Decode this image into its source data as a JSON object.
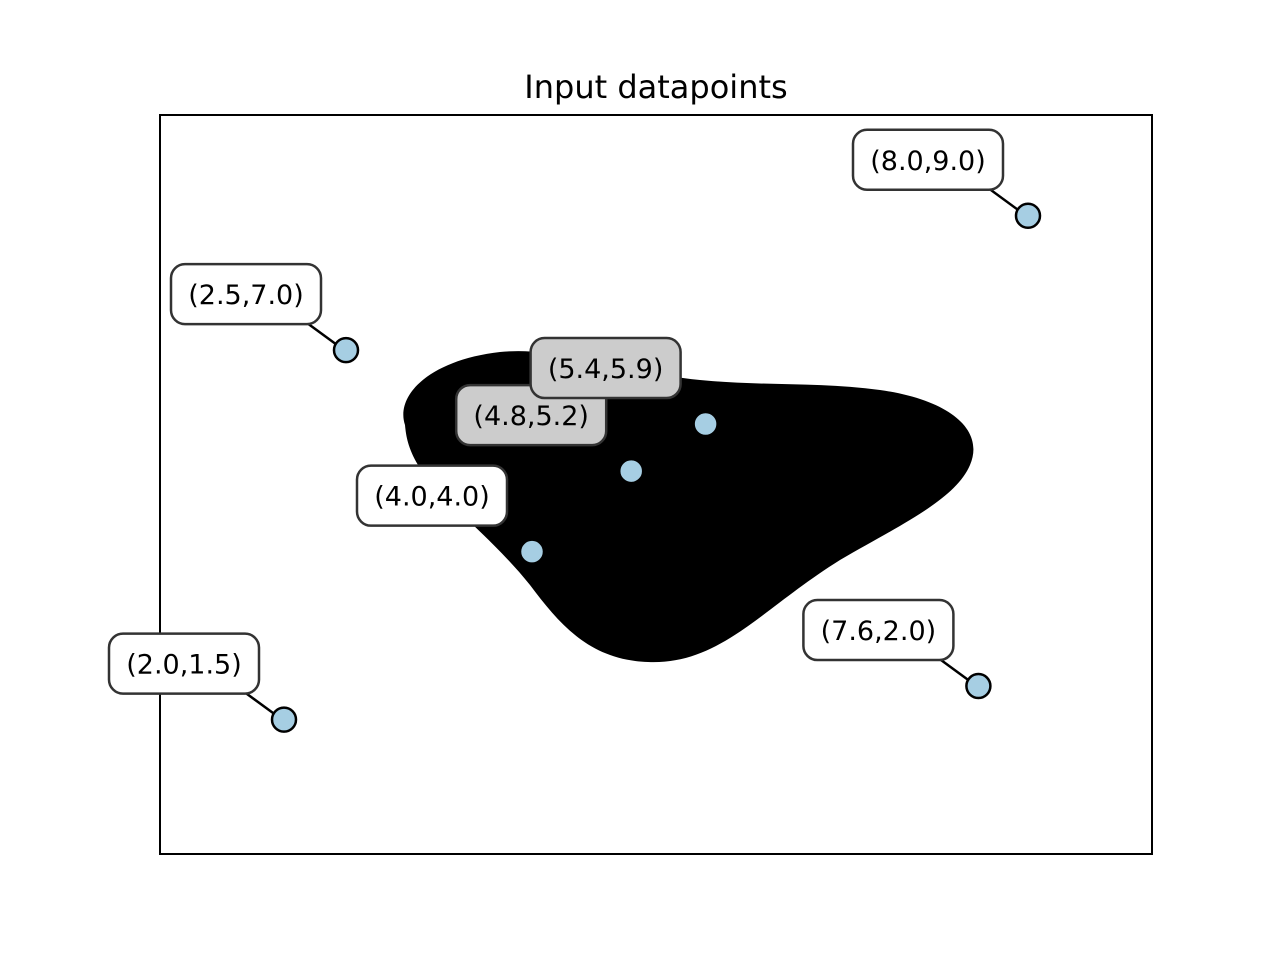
{
  "chart_data": {
    "type": "scatter",
    "title": "Input datapoints",
    "xlabel": "",
    "ylabel": "",
    "xlim": [
      1.0,
      9.0
    ],
    "ylim": [
      -0.5,
      10.5
    ],
    "grid": false,
    "points": [
      {
        "x": 2.0,
        "y": 1.5,
        "label": "(2.0,1.5)"
      },
      {
        "x": 2.5,
        "y": 7.0,
        "label": "(2.5,7.0)"
      },
      {
        "x": 4.0,
        "y": 4.0,
        "label": "(4.0,4.0)"
      },
      {
        "x": 4.8,
        "y": 5.2,
        "label": "(4.8,5.2)"
      },
      {
        "x": 5.4,
        "y": 5.9,
        "label": "(5.4,5.9)"
      },
      {
        "x": 7.6,
        "y": 2.0,
        "label": "(7.6,2.0)"
      },
      {
        "x": 8.0,
        "y": 9.0,
        "label": "(8.0,9.0)"
      }
    ],
    "marker_color": "#a6cee3",
    "region_color": "#000000"
  }
}
